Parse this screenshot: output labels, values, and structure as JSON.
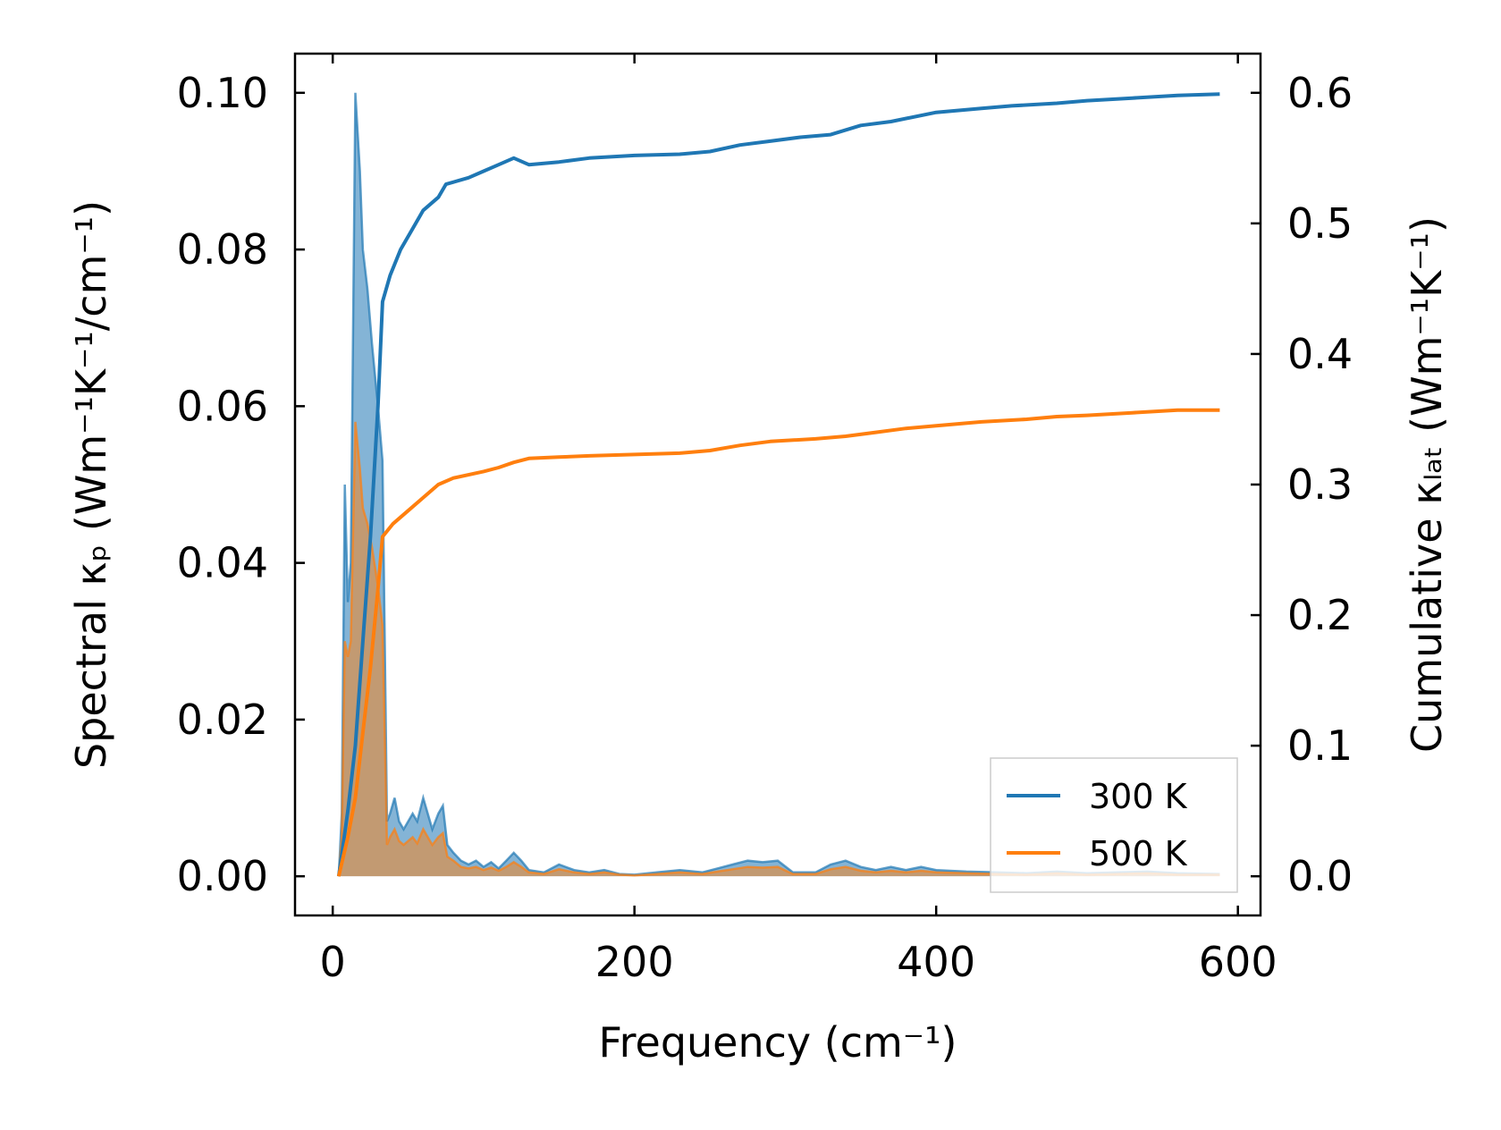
{
  "chart_data": {
    "type": "line",
    "title": "",
    "xlabel": "Frequency (cm⁻¹)",
    "ylabel_left": "Spectral κₚ (Wm⁻¹K⁻¹/cm⁻¹)",
    "ylabel_right": "Cumulative κₗₐₜ (Wm⁻¹K⁻¹)",
    "xlim": [
      -25,
      615
    ],
    "ylim_left": [
      -0.005,
      0.105
    ],
    "ylim_right": [
      -0.03,
      0.63
    ],
    "xticks": [
      0,
      200,
      400,
      600
    ],
    "xtick_labels": [
      "0",
      "200",
      "400",
      "600"
    ],
    "yticks_left": [
      0,
      0.02,
      0.04,
      0.06,
      0.08,
      0.1
    ],
    "ytick_labels_left": [
      "0.00",
      "0.02",
      "0.04",
      "0.06",
      "0.08",
      "0.10"
    ],
    "yticks_right": [
      0,
      0.1,
      0.2,
      0.3,
      0.4,
      0.5,
      0.6
    ],
    "ytick_labels_right": [
      "0.0",
      "0.1",
      "0.2",
      "0.3",
      "0.4",
      "0.5",
      "0.6"
    ],
    "grid": false,
    "legend_position": "bottom-right",
    "series": [
      {
        "name": "300 K",
        "color": "#1f77b4",
        "spectral": [
          [
            4,
            0
          ],
          [
            6,
            0.008
          ],
          [
            8,
            0.05
          ],
          [
            10,
            0.035
          ],
          [
            12,
            0.04
          ],
          [
            15,
            0.1
          ],
          [
            18,
            0.09
          ],
          [
            20,
            0.08
          ],
          [
            23,
            0.075
          ],
          [
            26,
            0.068
          ],
          [
            30,
            0.06
          ],
          [
            33,
            0.053
          ],
          [
            36,
            0.007
          ],
          [
            38,
            0.008
          ],
          [
            41,
            0.01
          ],
          [
            44,
            0.007
          ],
          [
            47,
            0.006
          ],
          [
            50,
            0.007
          ],
          [
            53,
            0.008
          ],
          [
            56,
            0.007
          ],
          [
            60,
            0.01
          ],
          [
            63,
            0.008
          ],
          [
            66,
            0.006
          ],
          [
            70,
            0.008
          ],
          [
            73,
            0.009
          ],
          [
            76,
            0.004
          ],
          [
            80,
            0.003
          ],
          [
            85,
            0.002
          ],
          [
            90,
            0.0015
          ],
          [
            95,
            0.002
          ],
          [
            100,
            0.0012
          ],
          [
            105,
            0.0018
          ],
          [
            110,
            0.001
          ],
          [
            115,
            0.002
          ],
          [
            120,
            0.003
          ],
          [
            125,
            0.002
          ],
          [
            130,
            0.0008
          ],
          [
            140,
            0.0005
          ],
          [
            150,
            0.0015
          ],
          [
            160,
            0.0008
          ],
          [
            170,
            0.0005
          ],
          [
            180,
            0.0008
          ],
          [
            190,
            0.0003
          ],
          [
            200,
            0.0002
          ],
          [
            215,
            0.0005
          ],
          [
            230,
            0.0008
          ],
          [
            245,
            0.0005
          ],
          [
            255,
            0.001
          ],
          [
            265,
            0.0015
          ],
          [
            275,
            0.002
          ],
          [
            285,
            0.0018
          ],
          [
            295,
            0.002
          ],
          [
            305,
            0.0005
          ],
          [
            320,
            0.0005
          ],
          [
            330,
            0.0015
          ],
          [
            340,
            0.002
          ],
          [
            350,
            0.0012
          ],
          [
            360,
            0.0008
          ],
          [
            370,
            0.0012
          ],
          [
            380,
            0.0008
          ],
          [
            390,
            0.0012
          ],
          [
            400,
            0.0008
          ],
          [
            420,
            0.0006
          ],
          [
            440,
            0.0005
          ],
          [
            460,
            0.0004
          ],
          [
            480,
            0.0006
          ],
          [
            500,
            0.0004
          ],
          [
            520,
            0.0005
          ],
          [
            540,
            0.0006
          ],
          [
            560,
            0.0004
          ],
          [
            588,
            0.0003
          ]
        ],
        "cumulative": [
          [
            4,
            0
          ],
          [
            10,
            0.05
          ],
          [
            15,
            0.1
          ],
          [
            20,
            0.18
          ],
          [
            25,
            0.26
          ],
          [
            30,
            0.36
          ],
          [
            33,
            0.44
          ],
          [
            38,
            0.46
          ],
          [
            45,
            0.48
          ],
          [
            55,
            0.5
          ],
          [
            60,
            0.51
          ],
          [
            70,
            0.52
          ],
          [
            75,
            0.53
          ],
          [
            90,
            0.535
          ],
          [
            100,
            0.54
          ],
          [
            110,
            0.545
          ],
          [
            120,
            0.55
          ],
          [
            130,
            0.545
          ],
          [
            150,
            0.547
          ],
          [
            170,
            0.55
          ],
          [
            200,
            0.552
          ],
          [
            230,
            0.553
          ],
          [
            250,
            0.555
          ],
          [
            270,
            0.56
          ],
          [
            290,
            0.563
          ],
          [
            310,
            0.566
          ],
          [
            330,
            0.568
          ],
          [
            350,
            0.575
          ],
          [
            370,
            0.578
          ],
          [
            400,
            0.585
          ],
          [
            430,
            0.588
          ],
          [
            450,
            0.59
          ],
          [
            480,
            0.592
          ],
          [
            500,
            0.594
          ],
          [
            530,
            0.596
          ],
          [
            560,
            0.598
          ],
          [
            588,
            0.599
          ]
        ]
      },
      {
        "name": "500 K",
        "color": "#ff7f0e",
        "spectral": [
          [
            4,
            0
          ],
          [
            6,
            0.005
          ],
          [
            8,
            0.03
          ],
          [
            10,
            0.028
          ],
          [
            12,
            0.03
          ],
          [
            15,
            0.058
          ],
          [
            18,
            0.052
          ],
          [
            20,
            0.047
          ],
          [
            23,
            0.045
          ],
          [
            26,
            0.042
          ],
          [
            30,
            0.037
          ],
          [
            33,
            0.032
          ],
          [
            36,
            0.004
          ],
          [
            38,
            0.005
          ],
          [
            41,
            0.006
          ],
          [
            44,
            0.0045
          ],
          [
            47,
            0.004
          ],
          [
            50,
            0.0045
          ],
          [
            53,
            0.005
          ],
          [
            56,
            0.0042
          ],
          [
            60,
            0.006
          ],
          [
            63,
            0.005
          ],
          [
            66,
            0.004
          ],
          [
            70,
            0.005
          ],
          [
            73,
            0.0055
          ],
          [
            76,
            0.0025
          ],
          [
            80,
            0.002
          ],
          [
            85,
            0.0012
          ],
          [
            90,
            0.001
          ],
          [
            95,
            0.0012
          ],
          [
            100,
            0.0008
          ],
          [
            105,
            0.0011
          ],
          [
            110,
            0.0007
          ],
          [
            115,
            0.0012
          ],
          [
            120,
            0.0018
          ],
          [
            125,
            0.0012
          ],
          [
            130,
            0.0005
          ],
          [
            140,
            0.0003
          ],
          [
            150,
            0.0009
          ],
          [
            160,
            0.0005
          ],
          [
            170,
            0.0003
          ],
          [
            180,
            0.0005
          ],
          [
            190,
            0.0002
          ],
          [
            200,
            0.0001
          ],
          [
            215,
            0.0003
          ],
          [
            230,
            0.0005
          ],
          [
            245,
            0.0003
          ],
          [
            255,
            0.0006
          ],
          [
            265,
            0.0009
          ],
          [
            275,
            0.0012
          ],
          [
            285,
            0.0011
          ],
          [
            295,
            0.0012
          ],
          [
            305,
            0.0003
          ],
          [
            320,
            0.0003
          ],
          [
            330,
            0.0009
          ],
          [
            340,
            0.0012
          ],
          [
            350,
            0.0007
          ],
          [
            360,
            0.0005
          ],
          [
            370,
            0.0007
          ],
          [
            380,
            0.0005
          ],
          [
            390,
            0.0007
          ],
          [
            400,
            0.0005
          ],
          [
            420,
            0.0004
          ],
          [
            440,
            0.0003
          ],
          [
            460,
            0.0002
          ],
          [
            480,
            0.0004
          ],
          [
            500,
            0.0002
          ],
          [
            520,
            0.0003
          ],
          [
            540,
            0.0004
          ],
          [
            560,
            0.0002
          ],
          [
            588,
            0.0002
          ]
        ],
        "cumulative": [
          [
            4,
            0
          ],
          [
            10,
            0.03
          ],
          [
            15,
            0.06
          ],
          [
            20,
            0.11
          ],
          [
            25,
            0.16
          ],
          [
            30,
            0.22
          ],
          [
            33,
            0.26
          ],
          [
            40,
            0.27
          ],
          [
            50,
            0.28
          ],
          [
            60,
            0.29
          ],
          [
            70,
            0.3
          ],
          [
            80,
            0.305
          ],
          [
            100,
            0.31
          ],
          [
            110,
            0.313
          ],
          [
            120,
            0.317
          ],
          [
            130,
            0.32
          ],
          [
            150,
            0.321
          ],
          [
            170,
            0.322
          ],
          [
            200,
            0.323
          ],
          [
            230,
            0.324
          ],
          [
            250,
            0.326
          ],
          [
            270,
            0.33
          ],
          [
            290,
            0.333
          ],
          [
            320,
            0.335
          ],
          [
            340,
            0.337
          ],
          [
            360,
            0.34
          ],
          [
            380,
            0.343
          ],
          [
            400,
            0.345
          ],
          [
            430,
            0.348
          ],
          [
            460,
            0.35
          ],
          [
            480,
            0.352
          ],
          [
            500,
            0.353
          ],
          [
            530,
            0.355
          ],
          [
            560,
            0.357
          ],
          [
            588,
            0.357
          ]
        ]
      }
    ]
  }
}
